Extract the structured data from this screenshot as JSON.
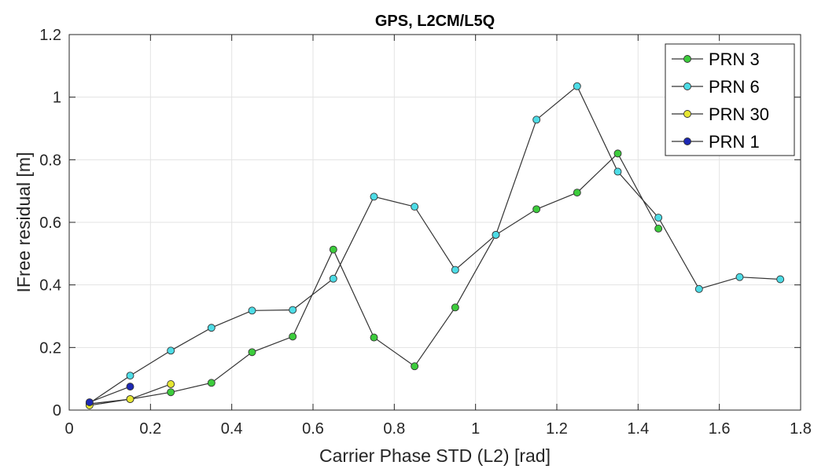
{
  "chart_data": {
    "type": "line",
    "title": "GPS, L2CM/L5Q",
    "xlabel": "Carrier Phase STD (L2) [rad]",
    "ylabel": "IFree residual  [m]",
    "xlim": [
      0,
      1.8
    ],
    "ylim": [
      0,
      1.2
    ],
    "xticks": [
      0,
      0.2,
      0.4,
      0.6,
      0.8,
      1,
      1.2,
      1.4,
      1.6,
      1.8
    ],
    "xtick_labels": [
      "0",
      "0.2",
      "0.4",
      "0.6",
      "0.8",
      "1",
      "1.2",
      "1.4",
      "1.6",
      "1.8"
    ],
    "yticks": [
      0,
      0.2,
      0.4,
      0.6,
      0.8,
      1,
      1.2
    ],
    "ytick_labels": [
      "0",
      "0.2",
      "0.4",
      "0.6",
      "0.8",
      "1",
      "1.2"
    ],
    "grid": true,
    "legend_position": "top-right",
    "line_color": "#333333",
    "series": [
      {
        "name": "PRN 3",
        "marker_color": "#3ccc3c",
        "x": [
          0.05,
          0.15,
          0.25,
          0.35,
          0.45,
          0.55,
          0.65,
          0.75,
          0.85,
          0.95,
          1.05,
          1.15,
          1.25,
          1.35,
          1.45
        ],
        "y": [
          0.02,
          0.035,
          0.057,
          0.087,
          0.185,
          0.235,
          0.513,
          0.232,
          0.14,
          0.328,
          0.56,
          0.642,
          0.695,
          0.82,
          0.58
        ]
      },
      {
        "name": "PRN 6",
        "marker_color": "#4ddce6",
        "x": [
          0.05,
          0.15,
          0.25,
          0.35,
          0.45,
          0.55,
          0.65,
          0.75,
          0.85,
          0.95,
          1.05,
          1.15,
          1.25,
          1.35,
          1.45,
          1.55,
          1.65,
          1.75
        ],
        "y": [
          0.022,
          0.11,
          0.19,
          0.263,
          0.318,
          0.32,
          0.42,
          0.682,
          0.65,
          0.448,
          0.56,
          0.928,
          1.035,
          0.762,
          0.615,
          0.387,
          0.425,
          0.418
        ]
      },
      {
        "name": "PRN 30",
        "marker_color": "#e6e632",
        "x": [
          0.05,
          0.15,
          0.25
        ],
        "y": [
          0.015,
          0.035,
          0.083
        ]
      },
      {
        "name": "PRN 1",
        "marker_color": "#1c28b4",
        "x": [
          0.05,
          0.15
        ],
        "y": [
          0.025,
          0.075
        ]
      }
    ]
  }
}
